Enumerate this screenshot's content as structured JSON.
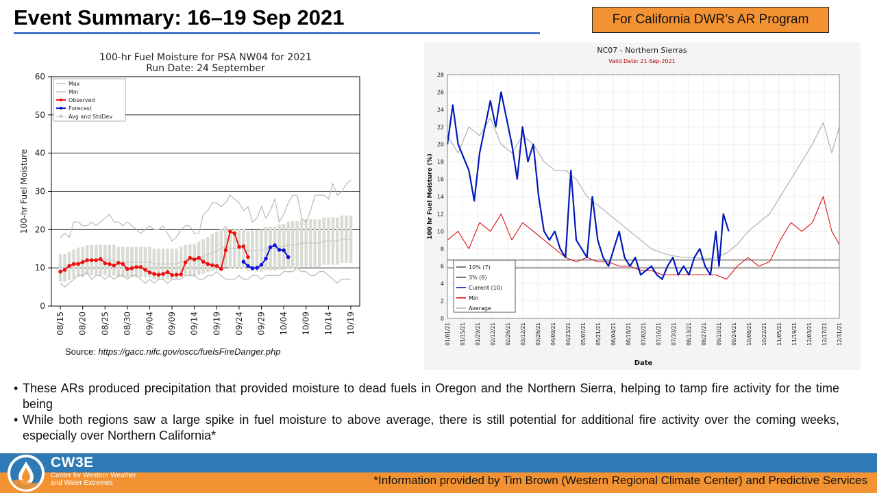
{
  "header": {
    "title": "Event Summary: 16–19 Sep 2021",
    "program_badge": "For California DWR’s AR Program"
  },
  "source": {
    "label": "Source: ",
    "url": "https://gacc.nifc.gov/oscc/fuelsFireDanger.php"
  },
  "bullets": [
    "These ARs produced precipitation that provided moisture to dead fuels in Oregon and the Northern Sierra, helping to tamp fire activity for the time being",
    "While both regions saw a large spike in fuel moisture to above average, there is still potential for additional fire activity over the coming weeks, especially over Northern California*"
  ],
  "footer": {
    "logo_text": "CW3E",
    "logo_sub_line1": "Center for Western Weather",
    "logo_sub_line2": "and Water Extremes",
    "credit": "*Information provided by Tim Brown (Western Regional Climate Center) and Predictive Services"
  },
  "colors": {
    "title_rule": "#4472c4",
    "badge": "#f39233",
    "footer_blue": "#2f7ab4",
    "footer_orange": "#f39233",
    "observed": "#ee1111",
    "forecast": "#1111dd"
  },
  "chart_data": [
    {
      "type": "line",
      "title": "100-hr Fuel Moisture for PSA NW04 for 2021",
      "subtitle": "Run Date: 24 September",
      "xlabel": "",
      "ylabel": "100-hr Fuel Moisture",
      "ylim": [
        0,
        60
      ],
      "yticks": [
        0,
        10,
        20,
        30,
        40,
        50,
        60
      ],
      "x_start": "08/13",
      "x_days": 69,
      "xticks": [
        {
          "day": 2,
          "label": "08/15"
        },
        {
          "day": 7,
          "label": "08/20"
        },
        {
          "day": 12,
          "label": "08/25"
        },
        {
          "day": 17,
          "label": "08/30"
        },
        {
          "day": 22,
          "label": "09/04"
        },
        {
          "day": 27,
          "label": "09/09"
        },
        {
          "day": 32,
          "label": "09/14"
        },
        {
          "day": 37,
          "label": "09/19"
        },
        {
          "day": 42,
          "label": "09/24"
        },
        {
          "day": 47,
          "label": "09/29"
        },
        {
          "day": 52,
          "label": "10/04"
        },
        {
          "day": 57,
          "label": "10/09"
        },
        {
          "day": 62,
          "label": "10/14"
        },
        {
          "day": 67,
          "label": "10/19"
        }
      ],
      "legend": [
        "Max",
        "Min",
        "Observed",
        "Forecast",
        "Avg and StdDev"
      ],
      "legend_position": "top-left",
      "series": [
        {
          "name": "Max",
          "start_day": 2,
          "values": [
            18,
            19,
            18,
            22,
            22,
            21,
            21,
            22,
            21,
            22,
            23,
            24,
            22,
            22,
            21,
            22,
            21,
            20,
            19,
            20,
            21,
            20,
            20,
            21,
            19,
            17,
            18,
            20,
            21,
            21,
            19,
            19,
            24,
            25,
            27,
            27,
            26,
            27,
            29,
            28,
            27,
            25,
            26,
            22,
            23,
            26,
            23,
            25,
            28,
            22,
            24,
            27,
            29,
            29,
            23,
            22,
            25,
            29,
            29,
            29,
            28,
            32,
            29,
            30,
            32,
            33
          ]
        },
        {
          "name": "Min",
          "start_day": 2,
          "values": [
            6,
            5,
            6,
            7,
            8,
            8,
            9,
            7,
            8,
            8,
            7,
            8,
            7,
            8,
            8,
            7,
            8,
            8,
            7,
            6,
            7,
            6,
            7,
            7,
            6,
            7,
            7,
            7,
            8,
            8,
            8,
            7,
            7,
            8,
            8,
            9,
            8,
            7,
            7,
            7,
            8,
            7,
            7,
            8,
            8,
            7,
            8,
            8,
            8,
            8,
            9,
            9,
            9,
            10,
            9,
            9,
            8,
            8,
            9,
            9,
            8,
            7,
            6,
            7,
            7,
            7
          ]
        },
        {
          "name": "Avg",
          "start_day": 2,
          "values": [
            10,
            10,
            10.5,
            11,
            11.5,
            11.5,
            12,
            12,
            12,
            12,
            12,
            12,
            12,
            11.5,
            11.5,
            11.5,
            11.5,
            11.5,
            11.5,
            11.5,
            11.5,
            11,
            11,
            11,
            11,
            11,
            11,
            11.5,
            12,
            12,
            12,
            12.5,
            13,
            13.5,
            14,
            14.5,
            15,
            15.5,
            15,
            15,
            15,
            15,
            14.5,
            14.5,
            14.5,
            14.5,
            15,
            15,
            15,
            15.5,
            15.5,
            16,
            16,
            16,
            16.5,
            16.5,
            16.5,
            16.5,
            16.5,
            17,
            17,
            17,
            17,
            17.5,
            17.5,
            17.5
          ]
        },
        {
          "name": "StdDev",
          "start_day": 2,
          "values": [
            3.6,
            3.6,
            3.7,
            3.8,
            3.8,
            3.9,
            3.9,
            4,
            4,
            4,
            4,
            4,
            4,
            4,
            4,
            4,
            4,
            4,
            4,
            4,
            4,
            4,
            4,
            4,
            4,
            4,
            4,
            4,
            4,
            4.2,
            4.3,
            4.4,
            4.5,
            4.6,
            4.8,
            5,
            5.2,
            5.4,
            5.2,
            5.2,
            5.2,
            5.2,
            5.2,
            5.3,
            5.4,
            5.5,
            5.6,
            5.7,
            5.8,
            5.9,
            6,
            6.1,
            6.2,
            6.2,
            6.2,
            6.2,
            6.2,
            6.2,
            6.2,
            6.2,
            6.2,
            6.2,
            6.2,
            6.2,
            6.2,
            6.2
          ]
        },
        {
          "name": "Observed",
          "start_day": 2,
          "values": [
            9,
            9.5,
            10.5,
            11,
            11,
            11.5,
            12,
            12,
            12,
            12.3,
            11.2,
            11,
            10.6,
            11.3,
            11,
            9.7,
            9.9,
            10.2,
            10.2,
            9.5,
            8.8,
            8.4,
            8.2,
            8.4,
            8.9,
            8.1,
            8.2,
            8.3,
            11.4,
            12.6,
            12.2,
            12.6,
            11.6,
            11,
            10.7,
            10.5,
            9.7,
            14.6,
            19.5,
            19,
            15.5,
            15.6,
            12.8
          ]
        },
        {
          "name": "Forecast",
          "start_day": 43,
          "values": [
            11.6,
            10.5,
            9.9,
            10,
            10.8,
            12.4,
            15.4,
            15.9,
            14.7,
            14.6,
            12.8
          ]
        }
      ]
    },
    {
      "type": "line",
      "title": "NC07 - Northern Sierras",
      "subtitle": "Valid Date: 21-Sep-2021",
      "xlabel": "Date",
      "ylabel": "100 hr Fuel Moisture (%)",
      "ylim": [
        0,
        28
      ],
      "yticks": [
        0,
        2,
        4,
        6,
        8,
        10,
        12,
        14,
        16,
        18,
        20,
        22,
        24,
        26,
        28
      ],
      "x_days": 365,
      "xtick_labels": [
        "01/01/21",
        "01/15/21",
        "01/29/21",
        "02/12/21",
        "02/26/21",
        "03/12/21",
        "03/26/21",
        "04/09/21",
        "04/23/21",
        "05/07/21",
        "05/21/21",
        "06/04/21",
        "06/18/21",
        "07/02/21",
        "07/16/21",
        "07/30/21",
        "08/13/21",
        "08/27/21",
        "09/10/21",
        "09/24/21",
        "10/08/21",
        "10/22/21",
        "11/05/21",
        "11/19/21",
        "12/03/21",
        "12/17/21",
        "12/31/21"
      ],
      "legend": [
        "10% (7)",
        "3% (6)",
        "Current (10)",
        "Min",
        "Average"
      ],
      "legend_position": "bottom-left",
      "thresholds": [
        {
          "name": "10% (7)",
          "value": 6.7
        },
        {
          "name": "3% (6)",
          "value": 5.8
        }
      ],
      "series": [
        {
          "name": "Average",
          "points": [
            [
              0,
              21
            ],
            [
              10,
              19
            ],
            [
              20,
              22
            ],
            [
              30,
              21
            ],
            [
              40,
              23
            ],
            [
              50,
              20
            ],
            [
              60,
              19
            ],
            [
              70,
              21
            ],
            [
              80,
              20
            ],
            [
              90,
              18
            ],
            [
              100,
              17
            ],
            [
              110,
              17
            ],
            [
              120,
              16
            ],
            [
              130,
              14
            ],
            [
              140,
              13
            ],
            [
              150,
              12
            ],
            [
              160,
              11
            ],
            [
              170,
              10
            ],
            [
              180,
              9
            ],
            [
              190,
              8
            ],
            [
              200,
              7.5
            ],
            [
              210,
              7.2
            ],
            [
              220,
              7
            ],
            [
              230,
              7
            ],
            [
              240,
              6.8
            ],
            [
              250,
              7
            ],
            [
              260,
              7.5
            ],
            [
              270,
              8.5
            ],
            [
              280,
              10
            ],
            [
              290,
              11
            ],
            [
              300,
              12
            ],
            [
              310,
              14
            ],
            [
              320,
              16
            ],
            [
              330,
              18
            ],
            [
              340,
              20
            ],
            [
              350,
              22.5
            ],
            [
              358,
              19
            ],
            [
              365,
              22
            ]
          ]
        },
        {
          "name": "Min",
          "points": [
            [
              0,
              9
            ],
            [
              10,
              10
            ],
            [
              20,
              8
            ],
            [
              30,
              11
            ],
            [
              40,
              10
            ],
            [
              50,
              12
            ],
            [
              60,
              9
            ],
            [
              70,
              11
            ],
            [
              80,
              10
            ],
            [
              90,
              9
            ],
            [
              100,
              8
            ],
            [
              110,
              7
            ],
            [
              120,
              6.5
            ],
            [
              130,
              7
            ],
            [
              140,
              6.5
            ],
            [
              150,
              6.5
            ],
            [
              160,
              6
            ],
            [
              170,
              6
            ],
            [
              180,
              5.5
            ],
            [
              190,
              5.5
            ],
            [
              200,
              5
            ],
            [
              210,
              5
            ],
            [
              220,
              5
            ],
            [
              230,
              5
            ],
            [
              240,
              5
            ],
            [
              250,
              5
            ],
            [
              260,
              4.5
            ],
            [
              270,
              6
            ],
            [
              280,
              7
            ],
            [
              290,
              6
            ],
            [
              300,
              6.5
            ],
            [
              310,
              9
            ],
            [
              320,
              11
            ],
            [
              330,
              10
            ],
            [
              340,
              11
            ],
            [
              350,
              14
            ],
            [
              358,
              10
            ],
            [
              365,
              8.5
            ]
          ]
        },
        {
          "name": "Current",
          "points": [
            [
              0,
              20
            ],
            [
              5,
              24.5
            ],
            [
              10,
              20
            ],
            [
              20,
              17
            ],
            [
              25,
              13.5
            ],
            [
              30,
              19
            ],
            [
              35,
              22
            ],
            [
              40,
              25
            ],
            [
              45,
              22
            ],
            [
              50,
              26
            ],
            [
              55,
              23
            ],
            [
              60,
              20
            ],
            [
              65,
              16
            ],
            [
              70,
              22
            ],
            [
              75,
              18
            ],
            [
              80,
              20
            ],
            [
              85,
              14
            ],
            [
              90,
              10
            ],
            [
              95,
              9
            ],
            [
              100,
              10
            ],
            [
              105,
              8
            ],
            [
              110,
              7
            ],
            [
              115,
              17
            ],
            [
              120,
              9
            ],
            [
              125,
              8
            ],
            [
              130,
              7
            ],
            [
              135,
              14
            ],
            [
              140,
              9
            ],
            [
              145,
              7
            ],
            [
              150,
              6
            ],
            [
              155,
              8
            ],
            [
              160,
              10
            ],
            [
              165,
              7
            ],
            [
              170,
              6
            ],
            [
              175,
              7
            ],
            [
              180,
              5
            ],
            [
              185,
              5.5
            ],
            [
              190,
              6
            ],
            [
              195,
              5
            ],
            [
              200,
              4.5
            ],
            [
              205,
              6
            ],
            [
              210,
              7
            ],
            [
              215,
              5
            ],
            [
              220,
              6
            ],
            [
              225,
              5
            ],
            [
              230,
              7
            ],
            [
              235,
              8
            ],
            [
              240,
              6
            ],
            [
              245,
              5
            ],
            [
              250,
              10
            ],
            [
              253,
              6
            ],
            [
              257,
              12
            ],
            [
              262,
              10
            ]
          ]
        }
      ]
    }
  ]
}
